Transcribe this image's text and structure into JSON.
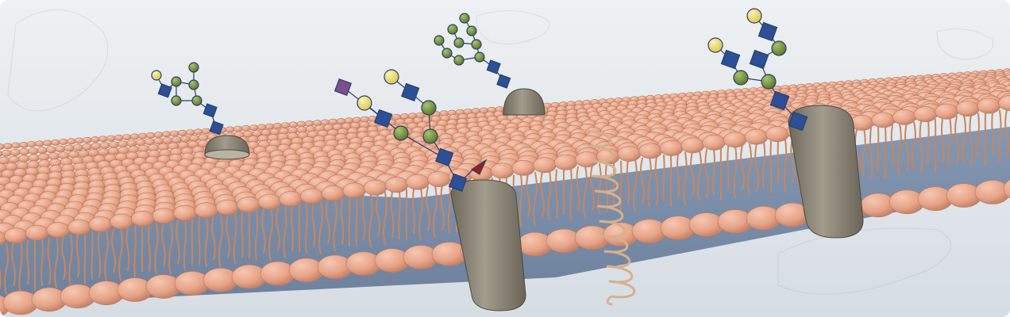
{
  "scene": {
    "subject": "",
    "colors": {
      "background": "#e6ebef",
      "lipid_head": "#e9a98c",
      "lipid_head_shadow": "#c98a70",
      "lipid_tail": "#c9865f",
      "interior": "#7f93ae",
      "protein": "#8c8779",
      "protein_dark": "#5f5a4e",
      "glycan_blue": "#2d4f95",
      "glycan_green": "#7f9b46",
      "glycan_yellow": "#f0e27a",
      "glycan_purple": "#7e4e8f",
      "glycan_red": "#9a1e1e",
      "helix": "#d6b08e"
    },
    "elements": [
      "phospholipid-bilayer",
      "transmembrane-proteins",
      "peripheral-pore-proteins",
      "glycan-chains",
      "alpha-helix"
    ]
  }
}
